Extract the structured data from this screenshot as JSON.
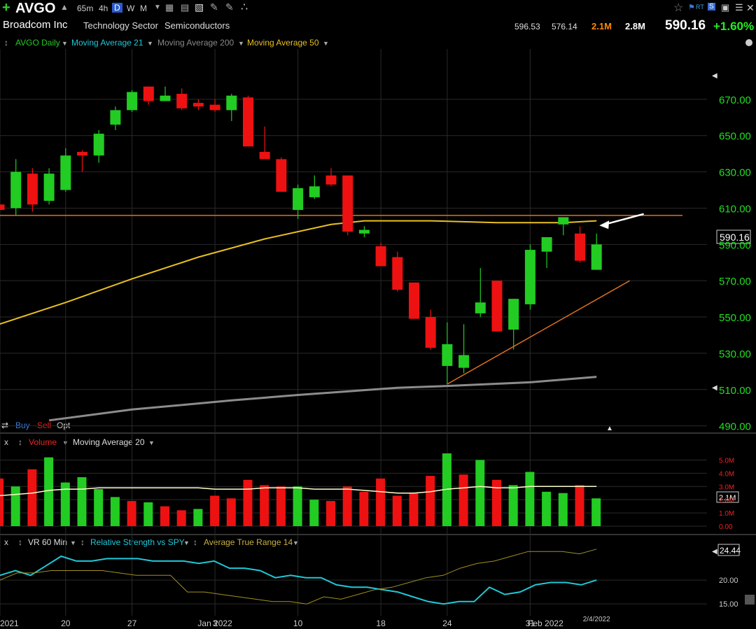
{
  "toolbar": {
    "plus_icon": "plus-icon",
    "symbol": "AVGO",
    "intervals": [
      "65m",
      "4h",
      "D",
      "W",
      "M"
    ],
    "active_interval": "D"
  },
  "info": {
    "company": "Broadcom Inc",
    "sector": "Technology Sector",
    "industry": "Semiconductors",
    "high": "596.53",
    "low": "576.14",
    "volume": "2.1M",
    "avg_volume": "2.8M",
    "last": "590.16",
    "change": "+1.60%"
  },
  "price_panel": {
    "legend": [
      "AVGO Daily",
      "Moving Average 21",
      "Moving Average 200",
      "Moving Average 50"
    ],
    "order_labels": [
      "Buy",
      "Sell",
      "Opt"
    ],
    "last_price_label": "590.16"
  },
  "volume_panel": {
    "legend": [
      "Volume",
      "Moving Average 20"
    ],
    "last_label": "2.1M"
  },
  "indicator_panel": {
    "legend": [
      "VR 60 Min",
      "Relative Strength vs SPY",
      "Average True Range 14"
    ],
    "last_label": "24.44"
  },
  "colors": {
    "up": "#22cc22",
    "down": "#ee1111",
    "ma50": "#e8c020",
    "ma200": "#8c8c8c",
    "trendline": "#e07020",
    "volume_ma": "#ffffcc",
    "rs_line": "#20c8d8",
    "atr_line": "#a09020",
    "axis_text": "#22dd22",
    "change_text": "#22ee22",
    "volume_text": "#ff8800"
  },
  "chart_data": [
    {
      "type": "candlestick",
      "title": "AVGO Daily",
      "x_tick_labels": [
        "2021",
        "20",
        "27",
        "Jan 2022",
        "3",
        "10",
        "18",
        "24",
        "31",
        "Feb 2022",
        "2/4/2022"
      ],
      "y_tick_labels": [
        "670.00",
        "650.00",
        "630.00",
        "610.00",
        "590.00",
        "570.00",
        "550.00",
        "530.00",
        "510.00",
        "490.00"
      ],
      "ylim": [
        486,
        690
      ],
      "candles": [
        {
          "x": 0,
          "o": 612,
          "h": 614,
          "l": 605,
          "c": 609
        },
        {
          "x": 1,
          "o": 610,
          "h": 637,
          "l": 606,
          "c": 630
        },
        {
          "x": 2,
          "o": 629,
          "h": 632,
          "l": 608,
          "c": 612
        },
        {
          "x": 3,
          "o": 614,
          "h": 632,
          "l": 612,
          "c": 629
        },
        {
          "x": 4,
          "o": 620,
          "h": 643,
          "l": 619,
          "c": 639
        },
        {
          "x": 5,
          "o": 641,
          "h": 642,
          "l": 630,
          "c": 639
        },
        {
          "x": 6,
          "o": 639,
          "h": 653,
          "l": 635,
          "c": 651
        },
        {
          "x": 7,
          "o": 656,
          "h": 666,
          "l": 653,
          "c": 664
        },
        {
          "x": 8,
          "o": 664,
          "h": 675,
          "l": 663,
          "c": 674
        },
        {
          "x": 9,
          "o": 677,
          "h": 677,
          "l": 667,
          "c": 669
        },
        {
          "x": 10,
          "o": 669,
          "h": 677,
          "l": 669,
          "c": 672
        },
        {
          "x": 11,
          "o": 673,
          "h": 676,
          "l": 664,
          "c": 665
        },
        {
          "x": 12,
          "o": 668,
          "h": 670,
          "l": 664,
          "c": 666
        },
        {
          "x": 13,
          "o": 667,
          "h": 670,
          "l": 663,
          "c": 664
        },
        {
          "x": 14,
          "o": 664,
          "h": 673,
          "l": 658,
          "c": 672
        },
        {
          "x": 15,
          "o": 671,
          "h": 672,
          "l": 644,
          "c": 644
        },
        {
          "x": 16,
          "o": 641,
          "h": 655,
          "l": 637,
          "c": 637
        },
        {
          "x": 17,
          "o": 637,
          "h": 638,
          "l": 619,
          "c": 619
        },
        {
          "x": 18,
          "o": 609,
          "h": 623,
          "l": 604,
          "c": 621
        },
        {
          "x": 19,
          "o": 616,
          "h": 628,
          "l": 615,
          "c": 622
        },
        {
          "x": 20,
          "o": 628,
          "h": 632,
          "l": 622,
          "c": 623
        },
        {
          "x": 21,
          "o": 628,
          "h": 628,
          "l": 595,
          "c": 597
        },
        {
          "x": 22,
          "o": 596,
          "h": 600,
          "l": 594,
          "c": 598
        },
        {
          "x": 23,
          "o": 589,
          "h": 591,
          "l": 578,
          "c": 578
        },
        {
          "x": 24,
          "o": 583,
          "h": 586,
          "l": 564,
          "c": 565
        },
        {
          "x": 25,
          "o": 569,
          "h": 569,
          "l": 549,
          "c": 549
        },
        {
          "x": 26,
          "o": 550,
          "h": 554,
          "l": 532,
          "c": 533
        },
        {
          "x": 27,
          "o": 523,
          "h": 547,
          "l": 513,
          "c": 535
        },
        {
          "x": 28,
          "o": 522,
          "h": 546,
          "l": 519,
          "c": 529
        },
        {
          "x": 29,
          "o": 552,
          "h": 577,
          "l": 550,
          "c": 558
        },
        {
          "x": 30,
          "o": 570,
          "h": 570,
          "l": 542,
          "c": 542
        },
        {
          "x": 31,
          "o": 543,
          "h": 560,
          "l": 532,
          "c": 560
        },
        {
          "x": 32,
          "o": 557,
          "h": 590,
          "l": 554,
          "c": 587
        },
        {
          "x": 33,
          "o": 586,
          "h": 594,
          "l": 577,
          "c": 594
        },
        {
          "x": 34,
          "o": 601,
          "h": 605,
          "l": 595,
          "c": 605
        },
        {
          "x": 35,
          "o": 596,
          "h": 600,
          "l": 580,
          "c": 581
        },
        {
          "x": 36,
          "o": 576,
          "h": 596,
          "l": 576,
          "c": 590
        }
      ],
      "series": [
        {
          "name": "Moving Average 50",
          "x": [
            0,
            4,
            8,
            12,
            16,
            20,
            22,
            26,
            30,
            34,
            36
          ],
          "values": [
            546,
            558,
            571,
            583,
            593,
            601,
            603,
            603,
            602,
            602,
            603
          ]
        },
        {
          "name": "Moving Average 200",
          "x": [
            3,
            8,
            14,
            18,
            24,
            27,
            32,
            36
          ],
          "values": [
            493,
            499,
            504,
            507,
            511,
            512,
            514,
            517
          ]
        }
      ],
      "annotations": {
        "horizontal_line": 606,
        "trendline": {
          "x": [
            27,
            38
          ],
          "values": [
            513,
            570
          ]
        },
        "arrow": {
          "from_x": 38,
          "from_y": 606,
          "to_x": 36,
          "to_y": 602
        }
      }
    },
    {
      "type": "bar",
      "title": "Volume",
      "y_tick_labels": [
        "5.0M",
        "4.0M",
        "3.0M",
        "2.0M",
        "1.0M",
        "0.00"
      ],
      "ylim": [
        0,
        5.5
      ],
      "values": [
        3.6,
        3.0,
        4.3,
        5.2,
        3.3,
        3.7,
        2.8,
        2.2,
        1.9,
        1.8,
        1.5,
        1.2,
        1.3,
        2.3,
        2.1,
        3.5,
        3.1,
        3.0,
        3.0,
        2.0,
        1.9,
        3.0,
        2.6,
        3.6,
        2.3,
        2.5,
        3.8,
        5.5,
        3.9,
        5.0,
        3.5,
        3.1,
        4.1,
        2.6,
        2.5,
        3.1,
        2.1
      ],
      "up": [
        false,
        true,
        false,
        true,
        true,
        true,
        true,
        true,
        false,
        true,
        false,
        false,
        true,
        false,
        false,
        false,
        false,
        false,
        true,
        true,
        false,
        false,
        false,
        false,
        false,
        false,
        false,
        true,
        false,
        true,
        false,
        true,
        true,
        true,
        true,
        false,
        true
      ],
      "series": [
        {
          "name": "Moving Average 20",
          "values": [
            2.3,
            2.4,
            2.5,
            2.7,
            2.8,
            2.8,
            2.9,
            2.9,
            2.9,
            2.9,
            2.9,
            2.9,
            2.9,
            2.8,
            2.8,
            2.8,
            2.9,
            2.9,
            2.9,
            2.8,
            2.8,
            2.8,
            2.7,
            2.6,
            2.5,
            2.5,
            2.6,
            2.8,
            2.9,
            3.0,
            2.9,
            2.9,
            3.0,
            3.0,
            3.0,
            3.0,
            3.0
          ]
        }
      ]
    },
    {
      "type": "line",
      "y_tick_labels": [
        "24.44",
        "20.00",
        "15.00"
      ],
      "ylim": [
        14,
        27.5
      ],
      "series": [
        {
          "name": "Relative Strength vs SPY",
          "values": [
            21.0,
            22.0,
            21.0,
            23.0,
            25.0,
            24.0,
            24.0,
            24.5,
            24.5,
            24.5,
            24.0,
            24.0,
            24.0,
            23.5,
            24.0,
            22.5,
            22.5,
            22.0,
            20.5,
            21.0,
            20.5,
            20.5,
            19.0,
            18.5,
            18.5,
            18.0,
            17.5,
            16.5,
            15.5,
            15.0,
            15.5,
            15.5,
            18.5,
            17.0,
            17.5,
            19.0,
            19.5,
            19.5,
            19.0,
            20.0
          ]
        },
        {
          "name": "Average True Range 14",
          "values": [
            20.0,
            21.5,
            21.5,
            22.0,
            22.0,
            22.0,
            22.0,
            21.5,
            21.0,
            21.0,
            21.0,
            17.5,
            17.5,
            17.0,
            16.5,
            16.0,
            15.5,
            15.5,
            15.0,
            16.5,
            16.0,
            17.0,
            18.0,
            18.5,
            19.5,
            20.5,
            21.0,
            22.5,
            23.5,
            24.0,
            25.0,
            26.0,
            26.0,
            26.0,
            25.5,
            26.5
          ]
        }
      ]
    }
  ]
}
